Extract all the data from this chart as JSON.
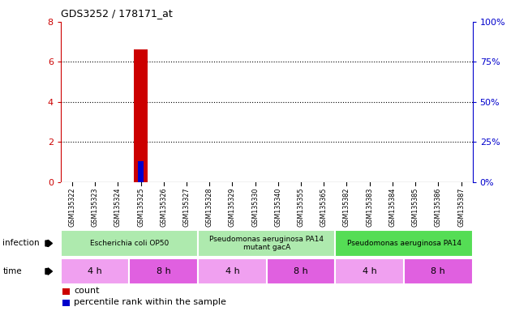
{
  "title": "GDS3252 / 178171_at",
  "samples": [
    "GSM135322",
    "GSM135323",
    "GSM135324",
    "GSM135325",
    "GSM135326",
    "GSM135327",
    "GSM135328",
    "GSM135329",
    "GSM135330",
    "GSM135340",
    "GSM135355",
    "GSM135365",
    "GSM135382",
    "GSM135383",
    "GSM135384",
    "GSM135385",
    "GSM135386",
    "GSM135387"
  ],
  "count_values": [
    0,
    0,
    0,
    6.6,
    0,
    0,
    0,
    0,
    0,
    0,
    0,
    0,
    0,
    0,
    0,
    0,
    0,
    0
  ],
  "percentile_values": [
    0,
    0,
    0,
    13,
    0,
    0,
    0,
    0,
    0,
    0,
    0,
    0,
    0,
    0,
    0,
    0,
    0,
    0
  ],
  "count_bar_color": "#cc0000",
  "percentile_bar_color": "#0000cc",
  "ylim_left": [
    0,
    8
  ],
  "ylim_right": [
    0,
    100
  ],
  "yticks_left": [
    0,
    2,
    4,
    6,
    8
  ],
  "yticks_right": [
    0,
    25,
    50,
    75,
    100
  ],
  "ytick_labels_right": [
    "0%",
    "25%",
    "50%",
    "75%",
    "100%"
  ],
  "infection_groups": [
    {
      "label": "Escherichia coli OP50",
      "start": 0,
      "end": 6,
      "color": "#aeeaae"
    },
    {
      "label": "Pseudomonas aeruginosa PA14\nmutant gacA",
      "start": 6,
      "end": 12,
      "color": "#aeeaae"
    },
    {
      "label": "Pseudomonas aeruginosa PA14",
      "start": 12,
      "end": 18,
      "color": "#55dd55"
    }
  ],
  "time_groups": [
    {
      "label": "4 h",
      "start": 0,
      "end": 3,
      "color": "#f0a0f0"
    },
    {
      "label": "8 h",
      "start": 3,
      "end": 6,
      "color": "#e060e0"
    },
    {
      "label": "4 h",
      "start": 6,
      "end": 9,
      "color": "#f0a0f0"
    },
    {
      "label": "8 h",
      "start": 9,
      "end": 12,
      "color": "#e060e0"
    },
    {
      "label": "4 h",
      "start": 12,
      "end": 15,
      "color": "#f0a0f0"
    },
    {
      "label": "8 h",
      "start": 15,
      "end": 18,
      "color": "#e060e0"
    }
  ],
  "legend_count_label": "count",
  "legend_percentile_label": "percentile rank within the sample",
  "background_color": "#ffffff",
  "tick_color_left": "#cc0000",
  "tick_color_right": "#0000cc",
  "sample_bg_color": "#d0d0d0",
  "sample_grid_color": "#ffffff"
}
